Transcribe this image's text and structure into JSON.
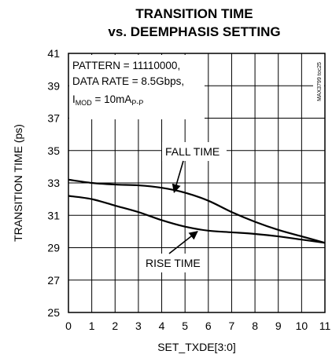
{
  "chart_data": {
    "type": "line",
    "title": [
      "TRANSITION TIME",
      "vs. DEEMPHASIS SETTING"
    ],
    "xlabel": "SET_TXDE[3:0]",
    "ylabel": "TRANSITION TIME (ps)",
    "xlim": [
      0,
      11
    ],
    "ylim": [
      25,
      41
    ],
    "xticks": [
      0,
      1,
      2,
      3,
      4,
      5,
      6,
      7,
      8,
      9,
      10,
      11
    ],
    "yticks": [
      25,
      27,
      29,
      31,
      33,
      35,
      37,
      39,
      41
    ],
    "grid": true,
    "conditions": {
      "pattern": "PATTERN = 11110000,",
      "data_rate": "DATA RATE = 8.5Gbps,",
      "imod_main": "I",
      "imod_sub": "MOD",
      "imod_value": " = 10mA",
      "imod_unit_sub": "P-P"
    },
    "watermark": "MAX3799 toc25",
    "series": [
      {
        "name": "FALL TIME",
        "x": [
          0,
          1,
          2,
          3,
          4,
          5,
          6,
          7,
          8,
          9,
          10,
          11
        ],
        "y": [
          33.2,
          33.0,
          32.9,
          32.85,
          32.7,
          32.4,
          31.9,
          31.2,
          30.6,
          30.1,
          29.7,
          29.3
        ]
      },
      {
        "name": "RISE TIME",
        "x": [
          0,
          1,
          2,
          3,
          4,
          5,
          6,
          7,
          8,
          9,
          10,
          11
        ],
        "y": [
          32.2,
          32.0,
          31.6,
          31.2,
          30.7,
          30.3,
          30.05,
          29.95,
          29.85,
          29.7,
          29.5,
          29.3
        ]
      }
    ],
    "annotations": [
      {
        "text": "FALL TIME",
        "series": "FALL TIME",
        "arrow_to_x": 4.6
      },
      {
        "text": "RISE TIME",
        "series": "RISE TIME",
        "arrow_to_x": 5.6
      }
    ]
  }
}
